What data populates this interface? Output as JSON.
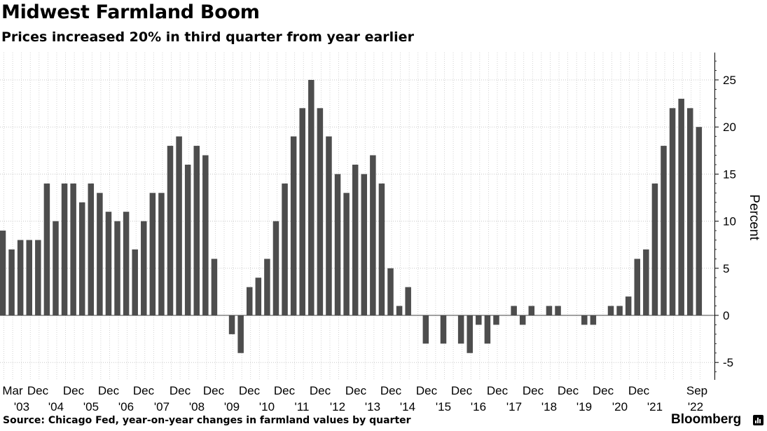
{
  "title": "Midwest Farmland Boom",
  "subtitle": "Prices increased 20% in third quarter from year earlier",
  "source": "Source: Chicago Fed, year-on-year changes in farmland values by quarter",
  "brand": "Bloomberg",
  "brand_icon": "bloomberg-terminal-icon",
  "colors": {
    "bar": "#4d4d4d",
    "grid": "#c8c8c8",
    "zero": "#444444"
  },
  "chart_data": {
    "type": "bar",
    "title": "Midwest Farmland Boom",
    "subtitle": "Prices increased 20% in third quarter from year earlier",
    "ylabel": "Percent",
    "ylim": [
      -7,
      28
    ],
    "yticks": [
      -5,
      0,
      5,
      10,
      15,
      20,
      25
    ],
    "y_axis_position": "right",
    "grid": true,
    "x": [
      "Dec '02",
      "Mar '03",
      "Jun '03",
      "Sep '03",
      "Dec '03",
      "Mar '04",
      "Jun '04",
      "Sep '04",
      "Dec '04",
      "Mar '05",
      "Jun '05",
      "Sep '05",
      "Dec '05",
      "Mar '06",
      "Jun '06",
      "Sep '06",
      "Dec '06",
      "Mar '07",
      "Jun '07",
      "Sep '07",
      "Dec '07",
      "Mar '08",
      "Jun '08",
      "Sep '08",
      "Dec '08",
      "Mar '09",
      "Jun '09",
      "Sep '09",
      "Dec '09",
      "Mar '10",
      "Jun '10",
      "Sep '10",
      "Dec '10",
      "Mar '11",
      "Jun '11",
      "Sep '11",
      "Dec '11",
      "Mar '12",
      "Jun '12",
      "Sep '12",
      "Dec '12",
      "Mar '13",
      "Jun '13",
      "Sep '13",
      "Dec '13",
      "Mar '14",
      "Jun '14",
      "Sep '14",
      "Dec '14",
      "Mar '15",
      "Jun '15",
      "Sep '15",
      "Dec '15",
      "Mar '16",
      "Jun '16",
      "Sep '16",
      "Dec '16",
      "Mar '17",
      "Jun '17",
      "Sep '17",
      "Dec '17",
      "Mar '18",
      "Jun '18",
      "Sep '18",
      "Dec '18",
      "Mar '19",
      "Jun '19",
      "Sep '19",
      "Dec '19",
      "Mar '20",
      "Jun '20",
      "Sep '20",
      "Dec '20",
      "Mar '21",
      "Jun '21",
      "Sep '21",
      "Dec '21",
      "Mar '22",
      "Jun '22",
      "Sep '22"
    ],
    "values": [
      9,
      7,
      8,
      8,
      8,
      14,
      10,
      14,
      14,
      12,
      14,
      13,
      11,
      10,
      11,
      7,
      10,
      13,
      13,
      18,
      19,
      16,
      18,
      17,
      6,
      0,
      -2,
      -4,
      3,
      4,
      6,
      10,
      14,
      19,
      22,
      25,
      22,
      19,
      15,
      13,
      16,
      15,
      17,
      14,
      5,
      1,
      3,
      0,
      -3,
      0,
      -3,
      0,
      -3,
      -4,
      -1,
      -3,
      -1,
      0,
      1,
      -1,
      1,
      0,
      1,
      1,
      0,
      0,
      -1,
      -1,
      0,
      1,
      1,
      2,
      6,
      7,
      14,
      18,
      22,
      23,
      22,
      20
    ],
    "xtick_month": [
      "Mar",
      "Dec",
      "Dec",
      "Dec",
      "Dec",
      "Dec",
      "Dec",
      "Dec",
      "Dec",
      "Dec",
      "Dec",
      "Dec",
      "Dec",
      "Dec",
      "Dec",
      "Dec",
      "Dec",
      "Dec",
      "Dec",
      "Sep"
    ],
    "xtick_year": [
      "'03",
      "'04",
      "'05",
      "'06",
      "'07",
      "'08",
      "'09",
      "'10",
      "'11",
      "'12",
      "'13",
      "'14",
      "'15",
      "'16",
      "'17",
      "'18",
      "'19",
      "'20",
      "'21",
      "'22"
    ]
  }
}
